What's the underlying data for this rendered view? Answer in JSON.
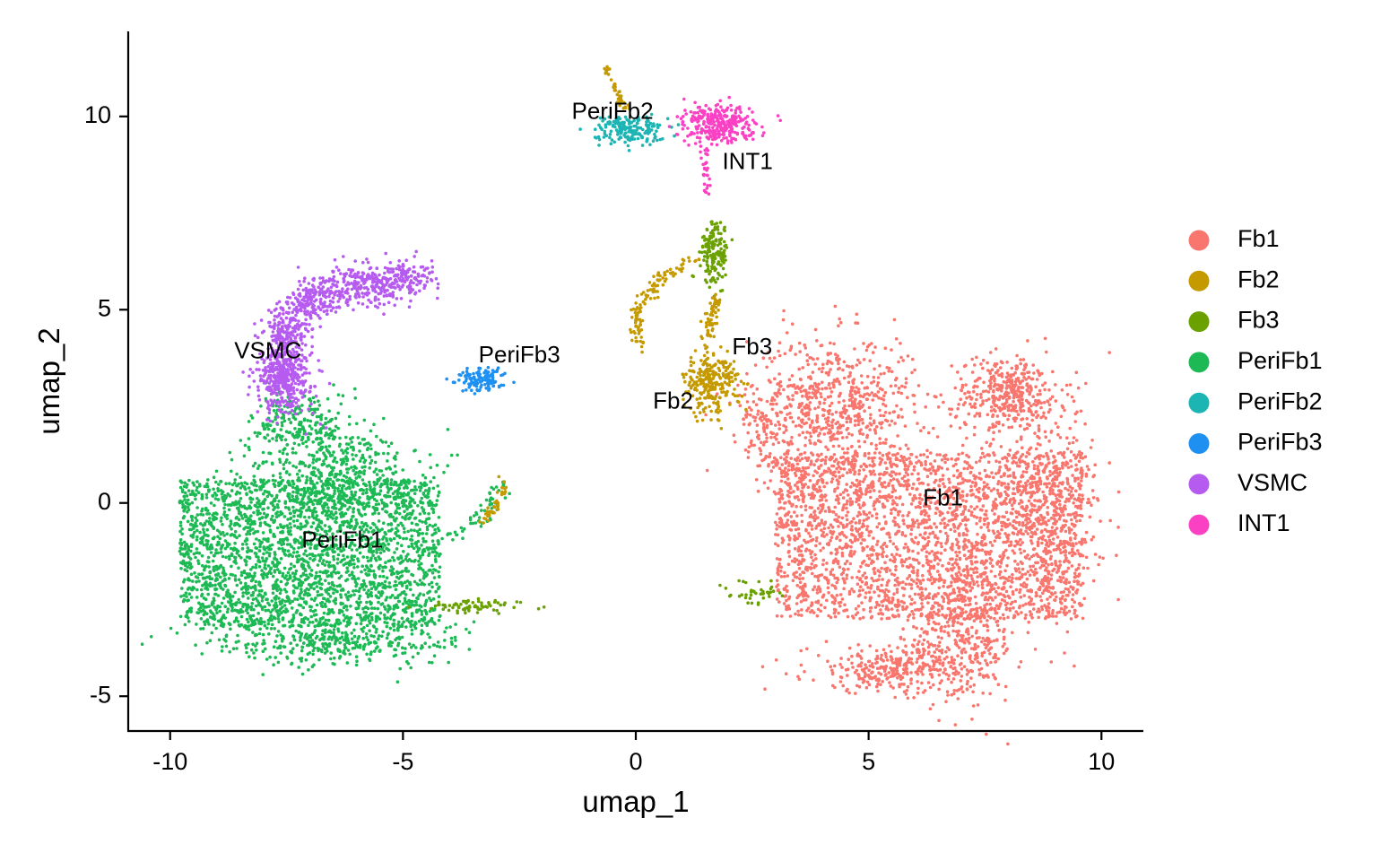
{
  "chart_data": {
    "type": "scatter",
    "title": "",
    "xlabel": "umap_1",
    "ylabel": "umap_2",
    "xlim": [
      -10.9,
      10.9
    ],
    "ylim": [
      -5.9,
      12.2
    ],
    "xticks": [
      -10,
      -5,
      0,
      5,
      10
    ],
    "xtick_labels": [
      "-10",
      "-5",
      "0",
      "5",
      "10"
    ],
    "yticks": [
      -5,
      0,
      5,
      10
    ],
    "ytick_labels": [
      "-5",
      "0",
      "5",
      "10"
    ],
    "grid": false,
    "legend_position": "right",
    "series": [
      {
        "name": "Fb1",
        "color": "#F8766D"
      },
      {
        "name": "Fb2",
        "color": "#C49A00"
      },
      {
        "name": "Fb3",
        "color": "#53B400"
      },
      {
        "name": "PeriFb1",
        "color": "#00C094"
      },
      {
        "name": "PeriFb2",
        "color": "#00B6EB"
      },
      {
        "name": "PeriFb3",
        "color": "#A58AFF"
      },
      {
        "name": "VSMC",
        "color": "#FB61D7"
      },
      {
        "name": "INT1",
        "color": "#FF2F9E"
      }
    ],
    "cluster_labels": [
      {
        "text": "PeriFb2",
        "x": -0.5,
        "y": 10.1
      },
      {
        "text": "INT1",
        "x": 2.4,
        "y": 8.8
      },
      {
        "text": "VSMC",
        "x": -7.9,
        "y": 3.9
      },
      {
        "text": "PeriFb3",
        "x": -2.5,
        "y": 3.8
      },
      {
        "text": "Fb3",
        "x": 2.5,
        "y": 4.0
      },
      {
        "text": "Fb2",
        "x": 0.8,
        "y": 2.6
      },
      {
        "text": "Fb1",
        "x": 6.6,
        "y": 0.1
      },
      {
        "text": "PeriFb1",
        "x": -6.3,
        "y": -1.0
      }
    ]
  }
}
